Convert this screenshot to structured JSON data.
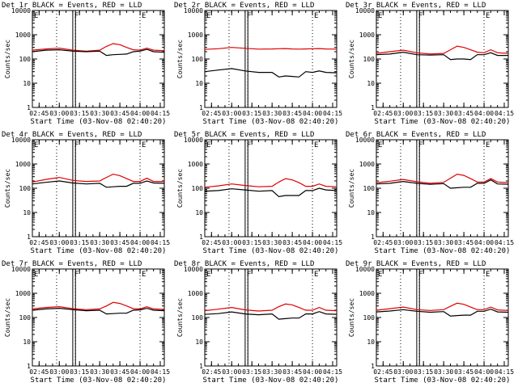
{
  "chart_data": {
    "type": "line",
    "panel_title_suffix": " BLACK = Events, RED = LLD",
    "xlabel": "Start Time (03-Nov-08 02:40:20)",
    "ylabel": "Counts/sec",
    "yscale": "log",
    "ylim": [
      1,
      10000
    ],
    "xlim": [
      "02:40",
      "04:18"
    ],
    "x_ticks": [
      "02:45",
      "03:00",
      "03:15",
      "03:30",
      "03:45",
      "04:00",
      "04:15"
    ],
    "y_ticks": [
      "1",
      "10",
      "100",
      "1000",
      "10000"
    ],
    "marker_labels": [
      "E",
      "F",
      "E"
    ],
    "dotted_lines": [
      "02:58",
      "03:12",
      "04:00"
    ],
    "saa_band": [
      "03:10",
      "03:12"
    ],
    "series_colors": {
      "events": "#000000",
      "lld": "#e00000"
    },
    "x": [
      "02:40",
      "02:50",
      "03:00",
      "03:10",
      "03:20",
      "03:30",
      "03:35",
      "03:40",
      "03:45",
      "03:50",
      "03:55",
      "04:00",
      "04:05",
      "04:10",
      "04:18"
    ],
    "panels": [
      {
        "title": "Det 1r",
        "events": [
          200,
          230,
          240,
          210,
          200,
          210,
          140,
          150,
          155,
          160,
          200,
          210,
          250,
          200,
          190
        ],
        "lld": [
          230,
          260,
          280,
          230,
          210,
          230,
          330,
          430,
          390,
          300,
          240,
          230,
          280,
          230,
          220
        ]
      },
      {
        "title": "Det 2r",
        "events": [
          30,
          35,
          40,
          32,
          28,
          28,
          18,
          20,
          19,
          18,
          30,
          28,
          32,
          28,
          27
        ],
        "lld": [
          250,
          265,
          300,
          275,
          255,
          260,
          265,
          270,
          260,
          255,
          260,
          265,
          270,
          260,
          255
        ]
      },
      {
        "title": "Det 3r",
        "events": [
          150,
          160,
          190,
          150,
          145,
          150,
          95,
          100,
          100,
          95,
          150,
          150,
          180,
          140,
          140
        ],
        "lld": [
          170,
          200,
          230,
          180,
          160,
          170,
          240,
          340,
          300,
          240,
          190,
          180,
          240,
          180,
          170
        ]
      },
      {
        "title": "Det 4r",
        "events": [
          150,
          175,
          200,
          165,
          150,
          160,
          110,
          115,
          120,
          120,
          160,
          160,
          200,
          165,
          160
        ],
        "lld": [
          180,
          230,
          280,
          210,
          190,
          200,
          280,
          380,
          330,
          250,
          190,
          190,
          260,
          190,
          190
        ]
      },
      {
        "title": "Det 5r",
        "events": [
          75,
          80,
          95,
          85,
          75,
          80,
          45,
          50,
          50,
          50,
          80,
          80,
          100,
          85,
          80
        ],
        "lld": [
          110,
          125,
          150,
          130,
          115,
          120,
          180,
          250,
          220,
          170,
          120,
          120,
          150,
          120,
          115
        ]
      },
      {
        "title": "Det 6r",
        "events": [
          150,
          160,
          190,
          160,
          145,
          155,
          100,
          105,
          110,
          110,
          160,
          160,
          220,
          150,
          145
        ],
        "lld": [
          170,
          195,
          230,
          185,
          160,
          175,
          260,
          380,
          340,
          250,
          180,
          180,
          250,
          180,
          170
        ]
      },
      {
        "title": "Det 7r",
        "events": [
          200,
          225,
          240,
          210,
          190,
          200,
          140,
          145,
          150,
          150,
          200,
          205,
          240,
          200,
          190
        ],
        "lld": [
          225,
          260,
          280,
          230,
          210,
          225,
          300,
          420,
          380,
          300,
          230,
          225,
          280,
          225,
          215
        ]
      },
      {
        "title": "Det 8r",
        "events": [
          135,
          145,
          170,
          140,
          130,
          140,
          85,
          90,
          95,
          95,
          140,
          140,
          175,
          140,
          135
        ],
        "lld": [
          190,
          220,
          260,
          205,
          185,
          200,
          280,
          360,
          330,
          260,
          200,
          200,
          260,
          200,
          190
        ]
      },
      {
        "title": "Det 9r",
        "events": [
          170,
          185,
          210,
          180,
          165,
          175,
          115,
          120,
          125,
          125,
          180,
          180,
          220,
          170,
          165
        ],
        "lld": [
          200,
          230,
          270,
          210,
          195,
          210,
          290,
          390,
          350,
          270,
          210,
          210,
          270,
          205,
          195
        ]
      }
    ]
  }
}
